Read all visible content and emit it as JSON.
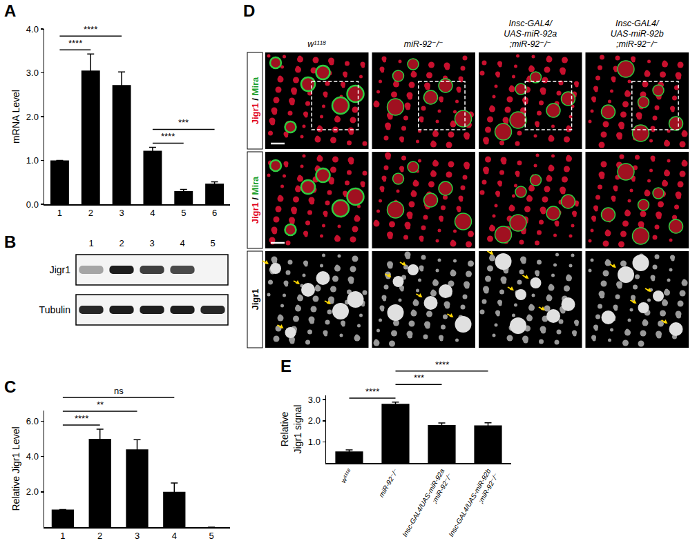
{
  "chart_data": [
    {
      "panel": "A",
      "type": "bar",
      "categories": [
        "1",
        "2",
        "3",
        "4",
        "5",
        "6"
      ],
      "values": [
        1.0,
        3.05,
        2.72,
        1.22,
        0.3,
        0.47
      ],
      "errors": [
        0,
        0.38,
        0.3,
        0.08,
        0.04,
        0.04
      ],
      "color": "#000000",
      "y_label": "mRNA Level",
      "ylim": [
        0,
        4
      ],
      "yticks": [
        {
          "value": 0,
          "label": "0.0"
        },
        {
          "value": 1,
          "label": "1.0"
        },
        {
          "value": 2,
          "label": "2.0"
        },
        {
          "value": 3,
          "label": "3.0"
        },
        {
          "value": 4,
          "label": "4.0"
        }
      ],
      "grid": false,
      "comparisons": [
        {
          "from": "1",
          "to": "2",
          "label": "****"
        },
        {
          "from": "1",
          "to": "3",
          "label": "****"
        },
        {
          "from": "4",
          "to": "5",
          "label": "****"
        },
        {
          "from": "4",
          "to": "6",
          "label": "***"
        }
      ]
    },
    {
      "panel": "C",
      "type": "bar",
      "categories": [
        "1",
        "2",
        "3",
        "4",
        "5"
      ],
      "values": [
        1.0,
        5.0,
        4.4,
        2.0,
        0
      ],
      "errors": [
        0,
        0.55,
        0.55,
        0.5,
        0
      ],
      "color": "#000000",
      "y_label": "Relative Jigr1 Level",
      "ylim": [
        0,
        6.6
      ],
      "yticks": [
        {
          "value": 2,
          "label": "2.0"
        },
        {
          "value": 4,
          "label": "4.0"
        },
        {
          "value": 6,
          "label": "6.0"
        }
      ],
      "grid": false,
      "comparisons": [
        {
          "from": "1",
          "to": "2",
          "label": "****"
        },
        {
          "from": "1",
          "to": "3",
          "label": "**"
        },
        {
          "from": "1",
          "to": "4",
          "label": "ns"
        }
      ]
    },
    {
      "panel": "E",
      "type": "bar",
      "categories": [
        "w¹¹¹⁸",
        "miR-92⁻/⁻",
        "Insc-GAL4/UAS-miR-92a;miR-92⁻/⁻",
        "Insc-GAL4/UAS-miR-92b;miR-92⁻/⁻"
      ],
      "values": [
        0.55,
        2.8,
        1.8,
        1.78
      ],
      "errors": [
        0.07,
        0.08,
        0.09,
        0.12
      ],
      "color": "#000000",
      "y_label": "Relative Jigr1 signal",
      "ylim": [
        0,
        3.2
      ],
      "yticks": [
        {
          "value": 1,
          "label": "1.0"
        },
        {
          "value": 2,
          "label": "2.0"
        },
        {
          "value": 3,
          "label": "3.0"
        }
      ],
      "grid": false,
      "comparisons": [
        {
          "from": "w¹¹¹⁸",
          "to": "miR-92⁻/⁻",
          "label": "****"
        },
        {
          "from": "miR-92⁻/⁻",
          "to": "Insc-GAL4/UAS-miR-92a;miR-92⁻/⁻",
          "label": "***"
        },
        {
          "from": "miR-92⁻/⁻",
          "to": "Insc-GAL4/UAS-miR-92b;miR-92⁻/⁻",
          "label": "****"
        }
      ]
    }
  ],
  "blot": {
    "panel": "B",
    "lanes": [
      "1",
      "2",
      "3",
      "4",
      "5"
    ],
    "rows": [
      {
        "label": "Jigr1",
        "intensity": [
          0.35,
          0.95,
          0.8,
          0.75,
          0
        ]
      },
      {
        "label": "Tubulin",
        "intensity": [
          0.9,
          0.95,
          0.95,
          0.95,
          0.9
        ]
      }
    ]
  },
  "images": {
    "panel": "D",
    "columns": [
      "w¹¹¹⁸",
      "miR-92⁻/⁻",
      "Insc-GAL4/UAS-miR-92a;miR-92⁻/⁻",
      "Insc-GAL4/UAS-miR-92b;miR-92⁻/⁻"
    ],
    "rows": [
      [
        {
          "text": "Jigr1",
          "color": "#e0001b"
        },
        {
          "text": " / ",
          "color": "#000000"
        },
        {
          "text": "Mira",
          "color": "#1a9e2a"
        }
      ],
      [
        {
          "text": "Jigr1",
          "color": "#e0001b"
        },
        {
          "text": " / ",
          "color": "#000000"
        },
        {
          "text": "Mira",
          "color": "#1a9e2a"
        }
      ],
      [
        {
          "text": "Jigr1",
          "color": "#000000"
        }
      ]
    ]
  }
}
